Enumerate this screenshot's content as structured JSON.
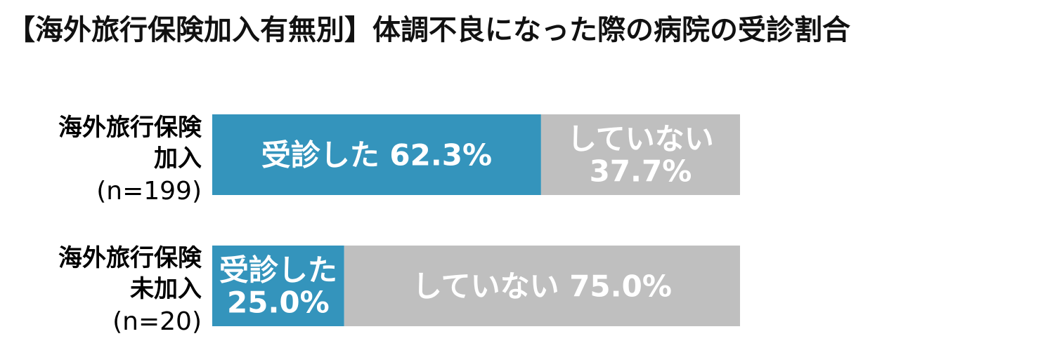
{
  "title": "【海外旅行保険加入有無別】体調不良になった際の病院の受診割合",
  "colors": {
    "visited": "#3494bc",
    "not_visited": "#bfbfbf",
    "label_text": "#ffffff"
  },
  "chart_data": {
    "type": "bar",
    "orientation": "horizontal",
    "stacked": "100%",
    "title": "【海外旅行保険加入有無別】体調不良になった際の病院の受診割合",
    "categories": [
      {
        "line1": "海外旅行保険",
        "line2": "加入",
        "n": "(n=199)"
      },
      {
        "line1": "海外旅行保険",
        "line2": "未加入",
        "n": "(n=20)"
      }
    ],
    "series": [
      {
        "name": "受診した",
        "values": [
          62.3,
          25.0
        ],
        "color": "#3494bc"
      },
      {
        "name": "していない",
        "values": [
          37.7,
          75.0
        ],
        "color": "#bfbfbf"
      }
    ],
    "data_labels": [
      [
        {
          "lines": [
            "受診した 62.3%"
          ]
        },
        {
          "lines": [
            "していない",
            "37.7%"
          ]
        }
      ],
      [
        {
          "lines": [
            "受診した",
            "25.0%"
          ]
        },
        {
          "lines": [
            "していない 75.0%"
          ]
        }
      ]
    ],
    "xlim": [
      0,
      100
    ],
    "grid": false,
    "legend": "none"
  }
}
